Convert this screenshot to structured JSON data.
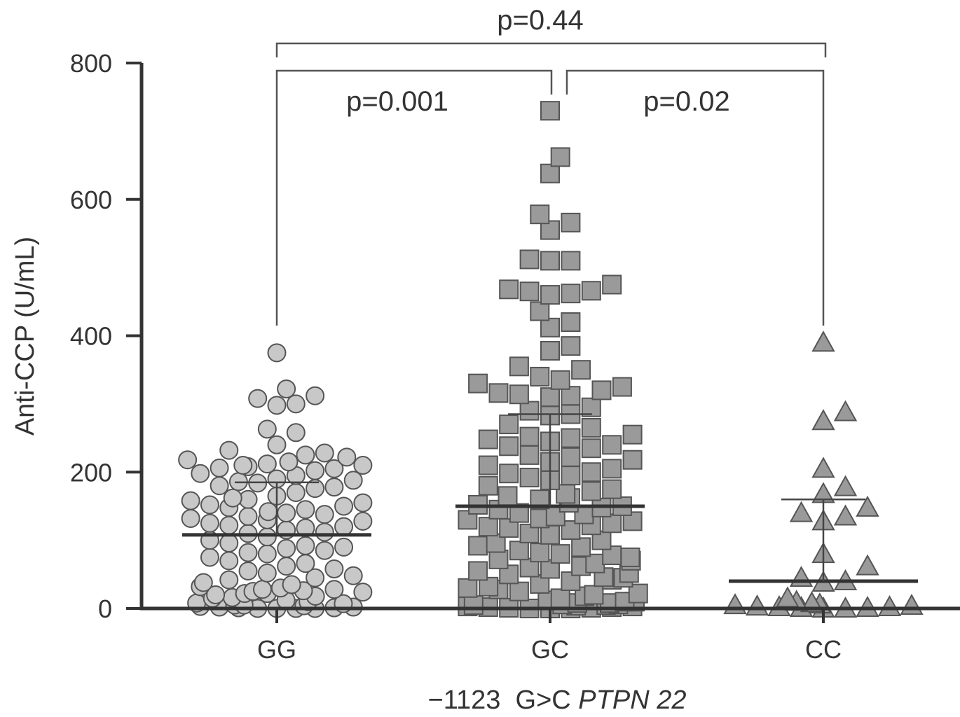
{
  "chart_data": {
    "type": "scatter",
    "title": "",
    "xlabel_prefix": "−1123  G>C ",
    "xlabel_gene": "PTPN 22",
    "ylabel": "Anti-CCP (U/mL)",
    "ylim": [
      0,
      800
    ],
    "yticks": [
      "0",
      "200",
      "400",
      "600",
      "800"
    ],
    "categories": [
      "GG",
      "GC",
      "CC"
    ],
    "grid": false,
    "colors": {
      "points": "#c8c8c8",
      "points_gc": "#9a9a9a",
      "outline": "#555555",
      "axis": "#333333"
    },
    "series": [
      {
        "category": "GG",
        "marker": "circle",
        "mean": 108,
        "sd_upper": 185,
        "values": [
          375,
          308,
          312,
          300,
          322,
          298,
          263,
          258,
          240,
          232,
          228,
          222,
          225,
          218,
          215,
          210,
          212,
          208,
          205,
          206,
          210,
          202,
          198,
          195,
          190,
          188,
          186,
          184,
          180,
          178,
          176,
          170,
          165,
          162,
          160,
          158,
          155,
          152,
          150,
          148,
          145,
          142,
          140,
          138,
          135,
          132,
          130,
          128,
          125,
          122,
          120,
          118,
          115,
          112,
          110,
          105,
          100,
          96,
          92,
          90,
          88,
          85,
          82,
          80,
          75,
          70,
          66,
          62,
          58,
          55,
          52,
          48,
          45,
          42,
          38,
          35,
          32,
          30,
          28,
          28,
          26,
          25,
          24,
          22,
          22,
          20,
          18,
          16,
          15,
          12,
          10,
          8,
          7,
          5,
          5,
          4,
          3,
          2,
          2,
          1,
          1,
          0,
          0,
          0,
          0
        ]
      },
      {
        "category": "GC",
        "marker": "square",
        "mean": 150,
        "sd_upper": 285,
        "values": [
          730,
          662,
          638,
          578,
          566,
          555,
          512,
          510,
          510,
          475,
          468,
          466,
          465,
          462,
          460,
          436,
          420,
          412,
          385,
          378,
          355,
          350,
          340,
          335,
          330,
          325,
          320,
          316,
          314,
          312,
          310,
          295,
          290,
          285,
          283,
          270,
          265,
          255,
          252,
          250,
          248,
          245,
          240,
          238,
          235,
          225,
          222,
          218,
          215,
          210,
          205,
          200,
          198,
          195,
          192,
          188,
          180,
          175,
          172,
          168,
          165,
          162,
          160,
          155,
          152,
          150,
          148,
          145,
          140,
          138,
          135,
          132,
          130,
          128,
          125,
          122,
          120,
          118,
          115,
          110,
          108,
          100,
          96,
          92,
          90,
          85,
          82,
          80,
          78,
          75,
          72,
          70,
          66,
          62,
          60,
          58,
          55,
          52,
          50,
          46,
          45,
          42,
          40,
          36,
          32,
          30,
          28,
          25,
          22,
          20,
          18,
          15,
          12,
          10,
          10,
          8,
          8,
          6,
          6,
          5,
          5,
          4,
          3,
          3,
          2,
          2,
          1,
          1,
          0,
          0,
          0
        ]
      },
      {
        "category": "CC",
        "marker": "triangle",
        "mean": 40,
        "sd_upper": 160,
        "values": [
          390,
          288,
          275,
          205,
          178,
          168,
          148,
          140,
          135,
          128,
          80,
          62,
          45,
          40,
          38,
          15,
          12,
          10,
          8,
          6,
          5,
          4,
          3,
          2,
          2,
          1,
          1,
          0,
          0
        ]
      }
    ],
    "annotations": [
      {
        "from": "GG",
        "to": "CC",
        "text": "p=0.44"
      },
      {
        "from": "GG",
        "to": "GC",
        "text": "p=0.001"
      },
      {
        "from": "GC",
        "to": "CC",
        "text": "p=0.02"
      }
    ]
  }
}
